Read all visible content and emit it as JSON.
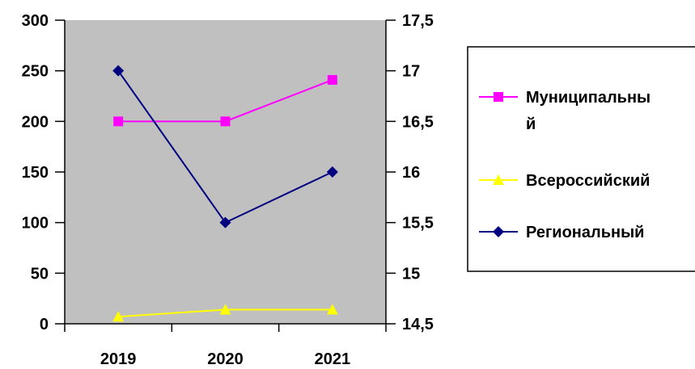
{
  "chart_data": {
    "type": "line",
    "title": "",
    "xlabel": "",
    "ylabel": "",
    "categories": [
      "2019",
      "2020",
      "2021"
    ],
    "y_left": {
      "min": 0,
      "max": 300,
      "ticks": [
        "0",
        "50",
        "100",
        "150",
        "200",
        "250",
        "300"
      ]
    },
    "y_right": {
      "min": 14.5,
      "max": 17.5,
      "ticks": [
        "14,5",
        "15",
        "15,5",
        "16",
        "16,5",
        "17",
        "17,5"
      ]
    },
    "plot_background": "#c0c0c0",
    "grid": false,
    "legend_position": "right",
    "series": [
      {
        "name": "Муниципальный",
        "legend_lines": [
          "Муниципальны",
          "й"
        ],
        "axis": "left",
        "values": [
          200,
          200,
          241
        ],
        "color": "#ff00ff",
        "marker": "square"
      },
      {
        "name": "Всероссийский",
        "legend_lines": [
          "Всероссийский"
        ],
        "axis": "left",
        "values": [
          7,
          14,
          14
        ],
        "color": "#ffff00",
        "marker": "triangle"
      },
      {
        "name": "Региональный",
        "legend_lines": [
          "Региональный"
        ],
        "axis": "left",
        "values": [
          250,
          100,
          150
        ],
        "color": "#000080",
        "marker": "diamond"
      }
    ]
  }
}
